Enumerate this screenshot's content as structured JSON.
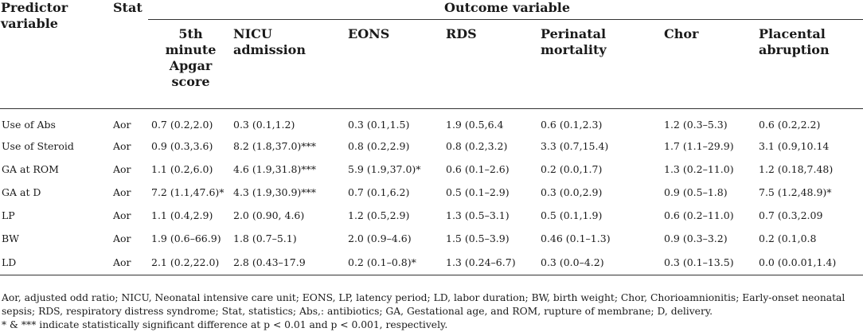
{
  "table": {
    "col_predictor": "Predictor variable",
    "col_stat": "Stat",
    "outcome_header": "Outcome variable",
    "outcomes": [
      "5th minute Apgar score",
      "NICU admission",
      "EONS",
      "RDS",
      "Perinatal mortality",
      "Chor",
      "Placental abruption"
    ],
    "rows": [
      {
        "predictor": "Use of Abs",
        "stat": "Aor",
        "values": [
          "0.7 (0.2,2.0)",
          "0.3 (0.1,1.2)",
          "0.3 (0.1,1.5)",
          "1.9 (0.5,6.4",
          "0.6 (0.1,2.3)",
          "1.2 (0.3–5.3)",
          "0.6 (0.2,2.2)"
        ]
      },
      {
        "predictor": "Use of Steroid",
        "stat": "Aor",
        "values": [
          "0.9 (0.3,3.6)",
          "8.2 (1.8,37.0)***",
          "0.8 (0.2,2.9)",
          "0.8 (0.2,3.2)",
          "3.3 (0.7,15.4)",
          "1.7 (1.1–29.9)",
          "3.1 (0.9,10.14"
        ]
      },
      {
        "predictor": "GA at ROM",
        "stat": "Aor",
        "values": [
          "1.1 (0.2,6.0)",
          "4.6 (1.9,31.8)***",
          "5.9 (1.9,37.0)*",
          "0.6 (0.1–2.6)",
          "0.2 (0.0,1.7)",
          "1.3 (0.2–11.0)",
          "1.2 (0.18,7.48)"
        ]
      },
      {
        "predictor": "GA at D",
        "stat": "Aor",
        "values": [
          "7.2 (1.1,47.6)*",
          "4.3 (1.9,30.9)***",
          "0.7 (0.1,6.2)",
          "0.5 (0.1–2.9)",
          "0.3 (0.0,2.9)",
          "0.9 (0.5–1.8)",
          "7.5 (1.2,48.9)*"
        ]
      },
      {
        "predictor": "LP",
        "stat": "Aor",
        "values": [
          "1.1 (0.4,2.9)",
          "2.0 (0.90, 4.6)",
          "1.2 (0.5,2.9)",
          "1.3 (0.5–3.1)",
          "0.5 (0.1,1.9)",
          "0.6 (0.2–11.0)",
          "0.7 (0.3,2.09"
        ]
      },
      {
        "predictor": "BW",
        "stat": "Aor",
        "values": [
          "1.9 (0.6–66.9)",
          "1.8 (0.7–5.1)",
          "2.0 (0.9–4.6)",
          "1.5 (0.5–3.9)",
          "0.46 (0.1–1.3)",
          "0.9 (0.3–3.2)",
          "0.2 (0.1,0.8"
        ]
      },
      {
        "predictor": "LD",
        "stat": "Aor",
        "values": [
          "2.1 (0.2,22.0)",
          "2.8 (0.43–17.9",
          "0.2 (0.1–0.8)*",
          "1.3 (0.24–6.7)",
          "0.3 (0.0–4.2)",
          "0.3 (0.1–13.5)",
          "0.0 (0.0.01,1.4)"
        ]
      }
    ]
  },
  "footnotes": [
    "Aor, adjusted odd ratio; NICU, Neonatal intensive care unit; EONS, LP, latency period; LD, labor duration; BW, birth weight; Chor, Chorioamnionitis; Early-onset neonatal sepsis; RDS, respiratory distress syndrome; Stat, statistics; Abs,: antibiotics; GA, Gestational age, and ROM, rupture of membrane; D, delivery.",
    "* & *** indicate statistically significant difference at p < 0.01 and p < 0.001, respectively."
  ]
}
